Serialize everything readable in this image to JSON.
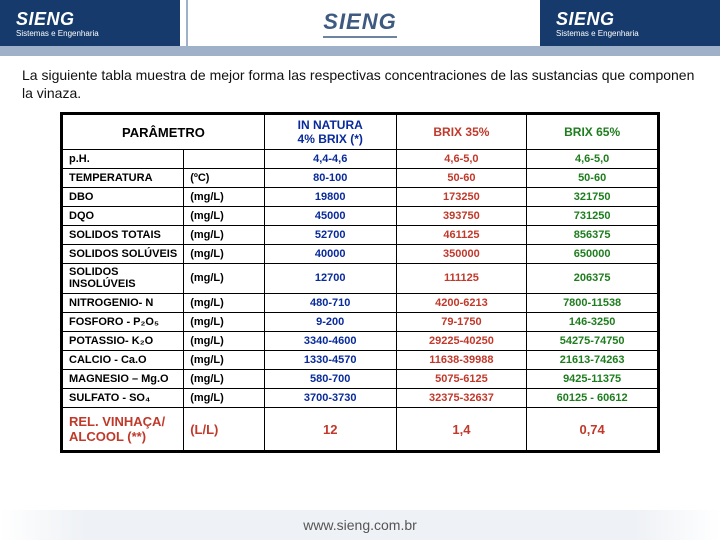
{
  "header": {
    "brand": "SIENG",
    "subtitle": "Sistemas e Engenharia"
  },
  "intro_text": "La siguiente tabla muestra de mejor forma las respectivas concentraciones de las sustancias que componen la vinaza.",
  "table": {
    "param_header": "PARÂMETRO",
    "columns": [
      {
        "label_line1": "IN NATURA",
        "label_line2": "4% BRIX (*)",
        "color": "#082a9a"
      },
      {
        "label_line1": "BRIX 35%",
        "label_line2": "",
        "color": "#c0392b"
      },
      {
        "label_line1": "BRIX 65%",
        "label_line2": "",
        "color": "#1e7d1e"
      }
    ],
    "rows": [
      {
        "param": "p.H.",
        "unit": "",
        "v1": "4,4-4,6",
        "v2": "4,6-5,0",
        "v3": "4,6-5,0"
      },
      {
        "param": "TEMPERATURA",
        "unit": "(ºC)",
        "v1": "80-100",
        "v2": "50-60",
        "v3": "50-60"
      },
      {
        "param": "DBO",
        "unit": "(mg/L)",
        "v1": "19800",
        "v2": "173250",
        "v3": "321750"
      },
      {
        "param": "DQO",
        "unit": "(mg/L)",
        "v1": "45000",
        "v2": "393750",
        "v3": "731250"
      },
      {
        "param": "SOLIDOS TOTAIS",
        "unit": "(mg/L)",
        "v1": "52700",
        "v2": "461125",
        "v3": "856375"
      },
      {
        "param": "SOLIDOS SOLÚVEIS",
        "unit": "(mg/L)",
        "v1": "40000",
        "v2": "350000",
        "v3": "650000"
      },
      {
        "param_line1": "SOLIDOS",
        "param_line2": "INSOLÚVEIS",
        "unit": "(mg/L)",
        "v1": "12700",
        "v2": "111125",
        "v3": "206375"
      },
      {
        "param": "NITROGENIO- N",
        "unit": "(mg/L)",
        "v1": "480-710",
        "v2": "4200-6213",
        "v3": "7800-11538"
      },
      {
        "param": "FOSFORO - P₂O₅",
        "unit": "(mg/L)",
        "v1": "9-200",
        "v2": "79-1750",
        "v3": "146-3250"
      },
      {
        "param": "POTASSIO-  K₂O",
        "unit": "(mg/L)",
        "v1": "3340-4600",
        "v2": "29225-40250",
        "v3": "54275-74750"
      },
      {
        "param": "CALCIO  -  Ca.O",
        "unit": "(mg/L)",
        "v1": "1330-4570",
        "v2": "11638-39988",
        "v3": "21613-74263"
      },
      {
        "param": "MAGNESIO – Mg.O",
        "unit": "(mg/L)",
        "v1": "580-700",
        "v2": "5075-6125",
        "v3": "9425-11375"
      },
      {
        "param": "SULFATO  - SO₄",
        "unit": "(mg/L)",
        "v1": "3700-3730",
        "v2": "32375-32637",
        "v3": "60125 - 60612"
      }
    ],
    "footer_row": {
      "param_line1": "REL. VINHAÇA/",
      "param_line2": "ALCOOL (**)",
      "unit": "(L/L)",
      "v1": "12",
      "v2": "1,4",
      "v3": "0,74"
    }
  },
  "footer_url": "www.sieng.com.br",
  "colors": {
    "header_bg": "#153a6b",
    "header_band": "#9fb0c9",
    "innatura": "#082a9a",
    "brix35": "#c0392b",
    "brix65": "#1e7d1e"
  }
}
